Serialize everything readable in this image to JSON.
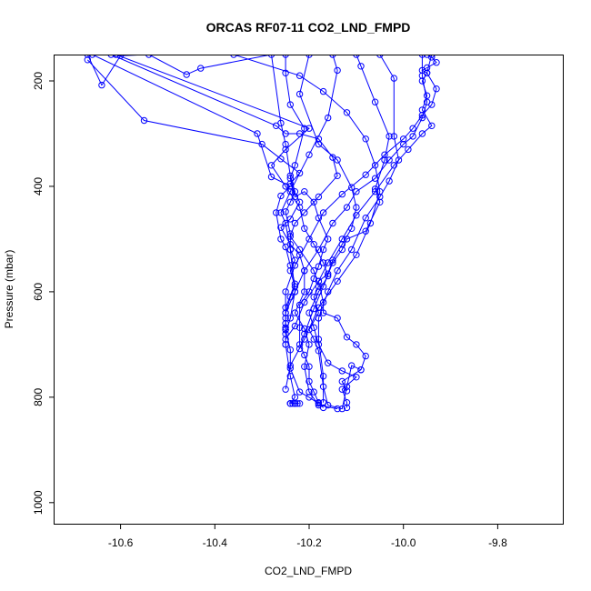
{
  "chart_data": {
    "type": "line",
    "title": "ORCAS RF07-11 CO2_LND_FMPD",
    "xlabel": "CO2_LND_FMPD",
    "ylabel": "Pressure (mbar)",
    "xlim": [
      -10.74,
      -9.66
    ],
    "ylim": [
      1040,
      150
    ],
    "y_inverted": true,
    "x_ticks": [
      -10.6,
      -10.4,
      -10.2,
      -10.0,
      -9.8
    ],
    "x_tick_labels": [
      "-10.6",
      "-10.4",
      "-10.2",
      "-10.0",
      "-9.8"
    ],
    "y_ticks": [
      200,
      400,
      600,
      800,
      1000
    ],
    "y_tick_labels": [
      "200",
      "400",
      "600",
      "800",
      "1000"
    ],
    "grid": false,
    "legend": "none",
    "line_color": "#0000ff",
    "marker": "open-circle",
    "series": [
      {
        "points": [
          [
            -10.67,
            150
          ],
          [
            -10.64,
            208
          ],
          [
            -10.6,
            152
          ],
          [
            -10.54,
            150
          ],
          [
            -10.46,
            188
          ],
          [
            -10.43,
            176
          ],
          [
            -10.28,
            150
          ],
          [
            -10.26,
            280
          ],
          [
            -10.25,
            320
          ],
          [
            -10.24,
            380
          ],
          [
            -10.23,
            410
          ],
          [
            -10.24,
            430
          ],
          [
            -10.25,
            448
          ],
          [
            -10.24,
            490
          ],
          [
            -10.24,
            520
          ],
          [
            -10.23,
            540
          ],
          [
            -10.24,
            560
          ],
          [
            -10.23,
            590
          ],
          [
            -10.24,
            610
          ],
          [
            -10.25,
            640
          ],
          [
            -10.25,
            668
          ],
          [
            -10.25,
            700
          ],
          [
            -10.24,
            760
          ],
          [
            -10.23,
            800
          ],
          [
            -10.24,
            812
          ]
        ]
      },
      {
        "points": [
          [
            -10.67,
            160
          ],
          [
            -10.55,
            275
          ],
          [
            -10.3,
            320
          ],
          [
            -10.26,
            348
          ],
          [
            -10.22,
            375
          ],
          [
            -10.24,
            395
          ],
          [
            -10.22,
            430
          ],
          [
            -10.24,
            462
          ],
          [
            -10.26,
            478
          ],
          [
            -10.24,
            510
          ],
          [
            -10.22,
            530
          ],
          [
            -10.21,
            560
          ],
          [
            -10.21,
            600
          ],
          [
            -10.23,
            640
          ],
          [
            -10.21,
            670
          ],
          [
            -10.2,
            700
          ],
          [
            -10.21,
            742
          ],
          [
            -10.2,
            790
          ],
          [
            -10.18,
            815
          ],
          [
            -10.14,
            822
          ]
        ]
      },
      {
        "points": [
          [
            -10.62,
            150
          ],
          [
            -10.27,
            285
          ],
          [
            -10.25,
            300
          ],
          [
            -10.22,
            300
          ],
          [
            -10.18,
            310
          ],
          [
            -10.15,
            345
          ],
          [
            -10.14,
            380
          ],
          [
            -10.18,
            420
          ],
          [
            -10.21,
            450
          ],
          [
            -10.23,
            470
          ],
          [
            -10.24,
            495
          ],
          [
            -10.22,
            520
          ],
          [
            -10.19,
            560
          ],
          [
            -10.18,
            590
          ],
          [
            -10.19,
            610
          ],
          [
            -10.18,
            640
          ],
          [
            -10.2,
            672
          ],
          [
            -10.19,
            690
          ],
          [
            -10.18,
            712
          ],
          [
            -10.17,
            780
          ],
          [
            -10.16,
            815
          ],
          [
            -10.13,
            822
          ],
          [
            -10.12,
            780
          ],
          [
            -10.11,
            740
          ],
          [
            -10.09,
            748
          ]
        ]
      },
      {
        "points": [
          [
            -10.61,
            150
          ],
          [
            -10.2,
            290
          ],
          [
            -10.25,
            330
          ],
          [
            -10.28,
            360
          ],
          [
            -10.25,
            400
          ],
          [
            -10.22,
            440
          ],
          [
            -10.21,
            480
          ],
          [
            -10.19,
            510
          ],
          [
            -10.17,
            545
          ],
          [
            -10.16,
            570
          ],
          [
            -10.18,
            600
          ],
          [
            -10.2,
            640
          ],
          [
            -10.19,
            668
          ],
          [
            -10.18,
            700
          ],
          [
            -10.16,
            735
          ],
          [
            -10.13,
            750
          ],
          [
            -10.1,
            762
          ],
          [
            -10.13,
            785
          ],
          [
            -10.12,
            810
          ],
          [
            -10.12,
            820
          ]
        ]
      },
      {
        "points": [
          [
            -10.66,
            150
          ],
          [
            -10.31,
            300
          ],
          [
            -10.28,
            382
          ],
          [
            -10.24,
            400
          ],
          [
            -10.26,
            418
          ],
          [
            -10.27,
            450
          ],
          [
            -10.26,
            500
          ],
          [
            -10.25,
            515
          ],
          [
            -10.24,
            550
          ],
          [
            -10.23,
            585
          ],
          [
            -10.25,
            630
          ],
          [
            -10.25,
            660
          ],
          [
            -10.25,
            672
          ],
          [
            -10.24,
            710
          ],
          [
            -10.24,
            745
          ],
          [
            -10.22,
            790
          ],
          [
            -10.2,
            800
          ],
          [
            -10.18,
            812
          ]
        ]
      },
      {
        "points": [
          [
            -10.25,
            150
          ],
          [
            -10.25,
            185
          ],
          [
            -10.24,
            245
          ],
          [
            -10.21,
            290
          ],
          [
            -10.23,
            360
          ],
          [
            -10.24,
            385
          ],
          [
            -10.23,
            420
          ],
          [
            -10.21,
            410
          ],
          [
            -10.19,
            430
          ],
          [
            -10.18,
            460
          ],
          [
            -10.16,
            500
          ],
          [
            -10.17,
            520
          ],
          [
            -10.18,
            552
          ],
          [
            -10.19,
            575
          ],
          [
            -10.2,
            600
          ],
          [
            -10.22,
            625
          ],
          [
            -10.22,
            668
          ],
          [
            -10.22,
            700
          ],
          [
            -10.21,
            720
          ],
          [
            -10.2,
            742
          ],
          [
            -10.2,
            770
          ],
          [
            -10.19,
            790
          ],
          [
            -10.18,
            810
          ],
          [
            -10.17,
            820
          ]
        ]
      },
      {
        "points": [
          [
            -10.2,
            150
          ],
          [
            -10.22,
            225
          ],
          [
            -10.18,
            320
          ],
          [
            -10.14,
            350
          ],
          [
            -10.11,
            402
          ],
          [
            -10.1,
            440
          ],
          [
            -10.11,
            480
          ],
          [
            -10.13,
            510
          ],
          [
            -10.15,
            540
          ],
          [
            -10.16,
            566
          ],
          [
            -10.18,
            580
          ],
          [
            -10.17,
            620
          ],
          [
            -10.17,
            640
          ],
          [
            -10.14,
            650
          ],
          [
            -10.12,
            686
          ],
          [
            -10.1,
            700
          ],
          [
            -10.08,
            722
          ],
          [
            -10.09,
            748
          ],
          [
            -10.13,
            770
          ],
          [
            -10.12,
            788
          ]
        ]
      },
      {
        "points": [
          [
            -10.1,
            150
          ],
          [
            -10.09,
            172
          ],
          [
            -10.06,
            240
          ],
          [
            -10.03,
            305
          ],
          [
            -10.04,
            350
          ],
          [
            -10.06,
            405
          ],
          [
            -10.05,
            430
          ],
          [
            -10.08,
            485
          ],
          [
            -10.12,
            500
          ],
          [
            -10.13,
            520
          ],
          [
            -10.15,
            545
          ],
          [
            -10.17,
            590
          ],
          [
            -10.19,
            632
          ],
          [
            -10.21,
            680
          ],
          [
            -10.22,
            708
          ]
        ]
      },
      {
        "points": [
          [
            -10.05,
            150
          ],
          [
            -10.02,
            195
          ],
          [
            -10.02,
            305
          ],
          [
            -10.01,
            350
          ],
          [
            -10.03,
            390
          ],
          [
            -10.05,
            420
          ],
          [
            -10.08,
            460
          ],
          [
            -10.11,
            520
          ],
          [
            -10.14,
            560
          ],
          [
            -10.16,
            600
          ],
          [
            -10.18,
            650
          ],
          [
            -10.18,
            690
          ],
          [
            -10.17,
            760
          ],
          [
            -10.17,
            810
          ]
        ]
      },
      {
        "points": [
          [
            -9.96,
            150
          ],
          [
            -9.96,
            190
          ],
          [
            -9.95,
            240
          ],
          [
            -9.96,
            270
          ],
          [
            -9.98,
            305
          ],
          [
            -10.0,
            320
          ],
          [
            -10.03,
            350
          ],
          [
            -10.06,
            385
          ],
          [
            -10.1,
            410
          ],
          [
            -10.12,
            440
          ],
          [
            -10.15,
            470
          ],
          [
            -10.18,
            520
          ],
          [
            -10.21,
            560
          ],
          [
            -10.23,
            600
          ],
          [
            -10.25,
            640
          ]
        ]
      },
      {
        "points": [
          [
            -9.94,
            150
          ],
          [
            -9.95,
            185
          ],
          [
            -9.93,
            215
          ],
          [
            -9.94,
            245
          ],
          [
            -9.96,
            265
          ],
          [
            -9.98,
            290
          ],
          [
            -10.0,
            310
          ],
          [
            -10.04,
            340
          ],
          [
            -10.08,
            378
          ],
          [
            -10.13,
            415
          ],
          [
            -10.17,
            450
          ],
          [
            -10.2,
            500
          ],
          [
            -10.23,
            550
          ],
          [
            -10.25,
            600
          ],
          [
            -10.25,
            650
          ],
          [
            -10.25,
            672
          ]
        ]
      },
      {
        "points": [
          [
            -9.95,
            150
          ],
          [
            -9.94,
            155
          ],
          [
            -9.93,
            165
          ],
          [
            -9.95,
            175
          ],
          [
            -9.96,
            180
          ],
          [
            -9.95,
            185
          ],
          [
            -9.96,
            200
          ],
          [
            -9.95,
            228
          ],
          [
            -9.96,
            255
          ],
          [
            -9.94,
            285
          ],
          [
            -9.96,
            300
          ],
          [
            -9.99,
            330
          ],
          [
            -10.02,
            360
          ],
          [
            -10.06,
            410
          ],
          [
            -10.1,
            455
          ],
          [
            -10.13,
            500
          ],
          [
            -10.16,
            545
          ],
          [
            -10.18,
            580
          ],
          [
            -10.21,
            620
          ],
          [
            -10.23,
            665
          ],
          [
            -10.25,
            690
          ],
          [
            -10.25,
            700
          ]
        ]
      },
      {
        "points": [
          [
            -10.36,
            150
          ],
          [
            -10.22,
            190
          ],
          [
            -10.17,
            220
          ],
          [
            -10.12,
            260
          ],
          [
            -10.08,
            310
          ],
          [
            -10.06,
            360
          ],
          [
            -10.05,
            410
          ],
          [
            -10.07,
            470
          ],
          [
            -10.1,
            530
          ],
          [
            -10.14,
            580
          ],
          [
            -10.18,
            630
          ],
          [
            -10.21,
            690
          ],
          [
            -10.24,
            740
          ],
          [
            -10.25,
            785
          ]
        ]
      },
      {
        "points": [
          [
            -10.15,
            150
          ],
          [
            -10.14,
            180
          ],
          [
            -10.16,
            270
          ],
          [
            -10.2,
            340
          ],
          [
            -10.24,
            410
          ],
          [
            -10.26,
            450
          ],
          [
            -10.25,
            470
          ],
          [
            -10.24,
            520
          ],
          [
            -10.23,
            600
          ],
          [
            -10.24,
            650
          ],
          [
            -10.25,
            680
          ]
        ]
      },
      {
        "points": [
          [
            -10.24,
            812
          ],
          [
            -10.235,
            812
          ],
          [
            -10.23,
            812
          ],
          [
            -10.225,
            812
          ],
          [
            -10.22,
            812
          ],
          [
            -10.23,
            812
          ],
          [
            -10.24,
            812
          ]
        ]
      }
    ]
  }
}
